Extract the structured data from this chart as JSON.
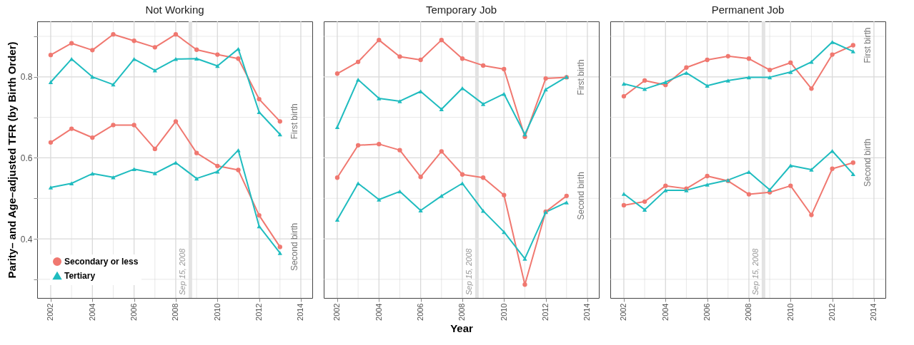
{
  "chart_data": [
    {
      "type": "line",
      "title": "Not Working",
      "ylabel": "Parity– and Age–adjusted TFR (by Birth Order)",
      "legend": "bottom left",
      "grid": true,
      "line_style": "solid",
      "x": [
        2002,
        2003,
        2004,
        2005,
        2006,
        2007,
        2008,
        2009,
        2010,
        2011,
        2012,
        2013
      ],
      "xlim": [
        2001.35,
        2014.55
      ],
      "xticks": [
        2002,
        {
          "value": 2003,
          "label": null
        },
        2004,
        {
          "value": 2005,
          "label": null
        },
        2006,
        {
          "value": 2007,
          "label": null
        },
        2008,
        {
          "value": 2009,
          "label": null
        },
        2010,
        {
          "value": 2011,
          "label": null
        },
        2012,
        {
          "value": 2013,
          "label": null
        },
        2014
      ],
      "ylim": [
        0.254,
        0.937
      ],
      "yticks": [
        {
          "value": 0.3,
          "label": null
        },
        0.4,
        {
          "value": 0.5,
          "label": null
        },
        0.6,
        {
          "value": 0.7,
          "label": null
        },
        0.8,
        {
          "value": 0.9,
          "label": null
        }
      ],
      "series": [
        {
          "name": "Secondary or less",
          "color": "#f07870",
          "marker": "circle",
          "values": [
            0.854,
            0.883,
            0.866,
            0.905,
            0.889,
            0.873,
            0.905,
            0.867,
            0.855,
            0.845,
            0.745,
            0.69
          ]
        },
        {
          "name": "Tertiary",
          "color": "#1fbcbf",
          "marker": "triangle",
          "values": [
            0.787,
            0.844,
            0.8,
            0.781,
            0.844,
            0.816,
            0.844,
            0.845,
            0.827,
            0.869,
            0.713,
            0.658
          ]
        },
        {
          "color": "#f07870",
          "marker": "circle",
          "values": [
            0.638,
            0.672,
            0.65,
            0.681,
            0.681,
            0.622,
            0.69,
            0.612,
            0.58,
            0.57,
            0.458,
            0.38
          ]
        },
        {
          "color": "#1fbcbf",
          "marker": "triangle",
          "values": [
            0.527,
            0.537,
            0.561,
            0.552,
            0.572,
            0.562,
            0.588,
            0.549,
            0.566,
            0.619,
            0.431,
            0.365
          ]
        }
      ],
      "ref_lines": [
        {
          "axis": "x",
          "value": 2008.7,
          "label": "Sep 15, 2008",
          "color": "#e3e3e3"
        }
      ],
      "annotations": [
        "First birth",
        "Second birth"
      ]
    },
    {
      "type": "line",
      "title": "Temporary Job",
      "xlabel": "Year",
      "grid": true,
      "line_style": "solid",
      "tick_labels": "x",
      "x": [
        2002,
        2003,
        2004,
        2005,
        2006,
        2007,
        2008,
        2009,
        2010,
        2011,
        2012,
        2013
      ],
      "xlim": [
        2001.35,
        2014.55
      ],
      "xticks": [
        2002,
        {
          "value": 2003,
          "label": null
        },
        2004,
        {
          "value": 2005,
          "label": null
        },
        2006,
        {
          "value": 2007,
          "label": null
        },
        2008,
        {
          "value": 2009,
          "label": null
        },
        2010,
        {
          "value": 2011,
          "label": null
        },
        2012,
        {
          "value": 2013,
          "label": null
        },
        2014
      ],
      "ylim": [
        0.254,
        0.937
      ],
      "yticks": [
        {
          "value": 0.3,
          "label": null
        },
        0.4,
        {
          "value": 0.5,
          "label": null
        },
        0.6,
        {
          "value": 0.7,
          "label": null
        },
        0.8,
        {
          "value": 0.9,
          "label": null
        }
      ],
      "series": [
        {
          "color": "#f07870",
          "marker": "circle",
          "values": [
            0.808,
            0.837,
            0.891,
            0.85,
            0.842,
            0.891,
            0.845,
            0.828,
            0.819,
            0.652,
            0.796,
            0.799
          ]
        },
        {
          "color": "#1fbcbf",
          "marker": "triangle",
          "values": [
            0.676,
            0.793,
            0.747,
            0.74,
            0.764,
            0.72,
            0.772,
            0.733,
            0.758,
            0.658,
            0.769,
            0.8
          ]
        },
        {
          "color": "#f07870",
          "marker": "circle",
          "values": [
            0.551,
            0.631,
            0.634,
            0.619,
            0.553,
            0.616,
            0.559,
            0.551,
            0.508,
            0.287,
            0.467,
            0.506
          ]
        },
        {
          "color": "#1fbcbf",
          "marker": "triangle",
          "values": [
            0.447,
            0.537,
            0.497,
            0.517,
            0.47,
            0.506,
            0.537,
            0.469,
            0.417,
            0.351,
            0.466,
            0.49
          ]
        }
      ],
      "ref_lines": [
        {
          "axis": "x",
          "value": 2008.7,
          "label": "Sep 15, 2008",
          "color": "#e3e3e3"
        }
      ],
      "annotations": [
        "First birth",
        "Second birth"
      ]
    },
    {
      "type": "line",
      "title": "Permanent Job",
      "grid": true,
      "line_style": "solid",
      "tick_labels": "x",
      "x": [
        2002,
        2003,
        2004,
        2005,
        2006,
        2007,
        2008,
        2009,
        2010,
        2011,
        2012,
        2013
      ],
      "xlim": [
        2001.35,
        2014.55
      ],
      "xticks": [
        2002,
        {
          "value": 2003,
          "label": null
        },
        2004,
        {
          "value": 2005,
          "label": null
        },
        2006,
        {
          "value": 2007,
          "label": null
        },
        2008,
        {
          "value": 2009,
          "label": null
        },
        2010,
        {
          "value": 2011,
          "label": null
        },
        2012,
        {
          "value": 2013,
          "label": null
        },
        2014
      ],
      "ylim": [
        0.254,
        0.937
      ],
      "yticks": [
        {
          "value": 0.3,
          "label": null
        },
        0.4,
        {
          "value": 0.5,
          "label": null
        },
        0.6,
        {
          "value": 0.7,
          "label": null
        },
        0.8,
        {
          "value": 0.9,
          "label": null
        }
      ],
      "series": [
        {
          "color": "#f07870",
          "marker": "circle",
          "values": [
            0.752,
            0.791,
            0.78,
            0.823,
            0.842,
            0.851,
            0.845,
            0.817,
            0.835,
            0.771,
            0.855,
            0.878
          ]
        },
        {
          "color": "#1fbcbf",
          "marker": "triangle",
          "values": [
            0.783,
            0.77,
            0.787,
            0.81,
            0.778,
            0.791,
            0.799,
            0.799,
            0.812,
            0.837,
            0.886,
            0.863
          ]
        },
        {
          "color": "#f07870",
          "marker": "circle",
          "values": [
            0.483,
            0.492,
            0.531,
            0.524,
            0.555,
            0.543,
            0.51,
            0.515,
            0.531,
            0.459,
            0.573,
            0.588
          ]
        },
        {
          "color": "#1fbcbf",
          "marker": "triangle",
          "values": [
            0.511,
            0.472,
            0.52,
            0.52,
            0.534,
            0.545,
            0.565,
            0.521,
            0.581,
            0.571,
            0.617,
            0.56
          ]
        }
      ],
      "ref_lines": [
        {
          "axis": "x",
          "value": 2008.7,
          "label": "Sep 15, 2008",
          "color": "#e3e3e3"
        }
      ],
      "annotations": [
        "First birth",
        "Second birth"
      ]
    }
  ]
}
